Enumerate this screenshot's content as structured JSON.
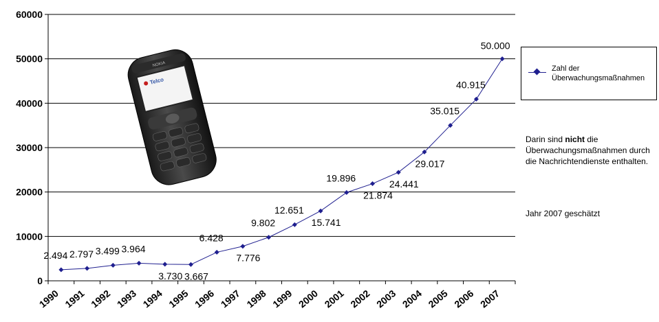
{
  "chart_data": {
    "type": "line",
    "categories": [
      "1990",
      "1991",
      "1992",
      "1993",
      "1994",
      "1995",
      "1996",
      "1997",
      "1998",
      "1999",
      "2000",
      "2001",
      "2002",
      "2003",
      "2004",
      "2005",
      "2006",
      "2007"
    ],
    "series": [
      {
        "name": "Zahl der Überwachungsmaßnahmen",
        "values": [
          2494,
          2797,
          3499,
          3964,
          3730,
          3667,
          6428,
          7776,
          9802,
          12651,
          15741,
          19896,
          21874,
          24441,
          29017,
          35015,
          40915,
          50000
        ],
        "data_labels": [
          "2.494",
          "2.797",
          "3.499",
          "3.964",
          "3.730",
          "3.667",
          "6.428",
          "7.776",
          "9.802",
          "12.651",
          "15.741",
          "19.896",
          "21.874",
          "24.441",
          "29.017",
          "35.015",
          "40.915",
          "50.000"
        ]
      }
    ],
    "yticks": [
      "0",
      "10000",
      "20000",
      "30000",
      "40000",
      "50000",
      "60000"
    ],
    "ylim": [
      0,
      60000
    ],
    "grid": true,
    "legend_position": "right",
    "color": "#1f1f8f"
  },
  "legend": {
    "label": "Zahl der Überwachungsmaßnahmen"
  },
  "notes": {
    "part1": "Darin sind ",
    "bold": "nicht",
    "part2": " die Überwachungsmaßnahmen durch die Nachrichtendienste enthalten.",
    "estimate": "Jahr 2007 geschätzt"
  },
  "phone": {
    "screen_text": "Telco",
    "brand_text": "NOKIA"
  }
}
